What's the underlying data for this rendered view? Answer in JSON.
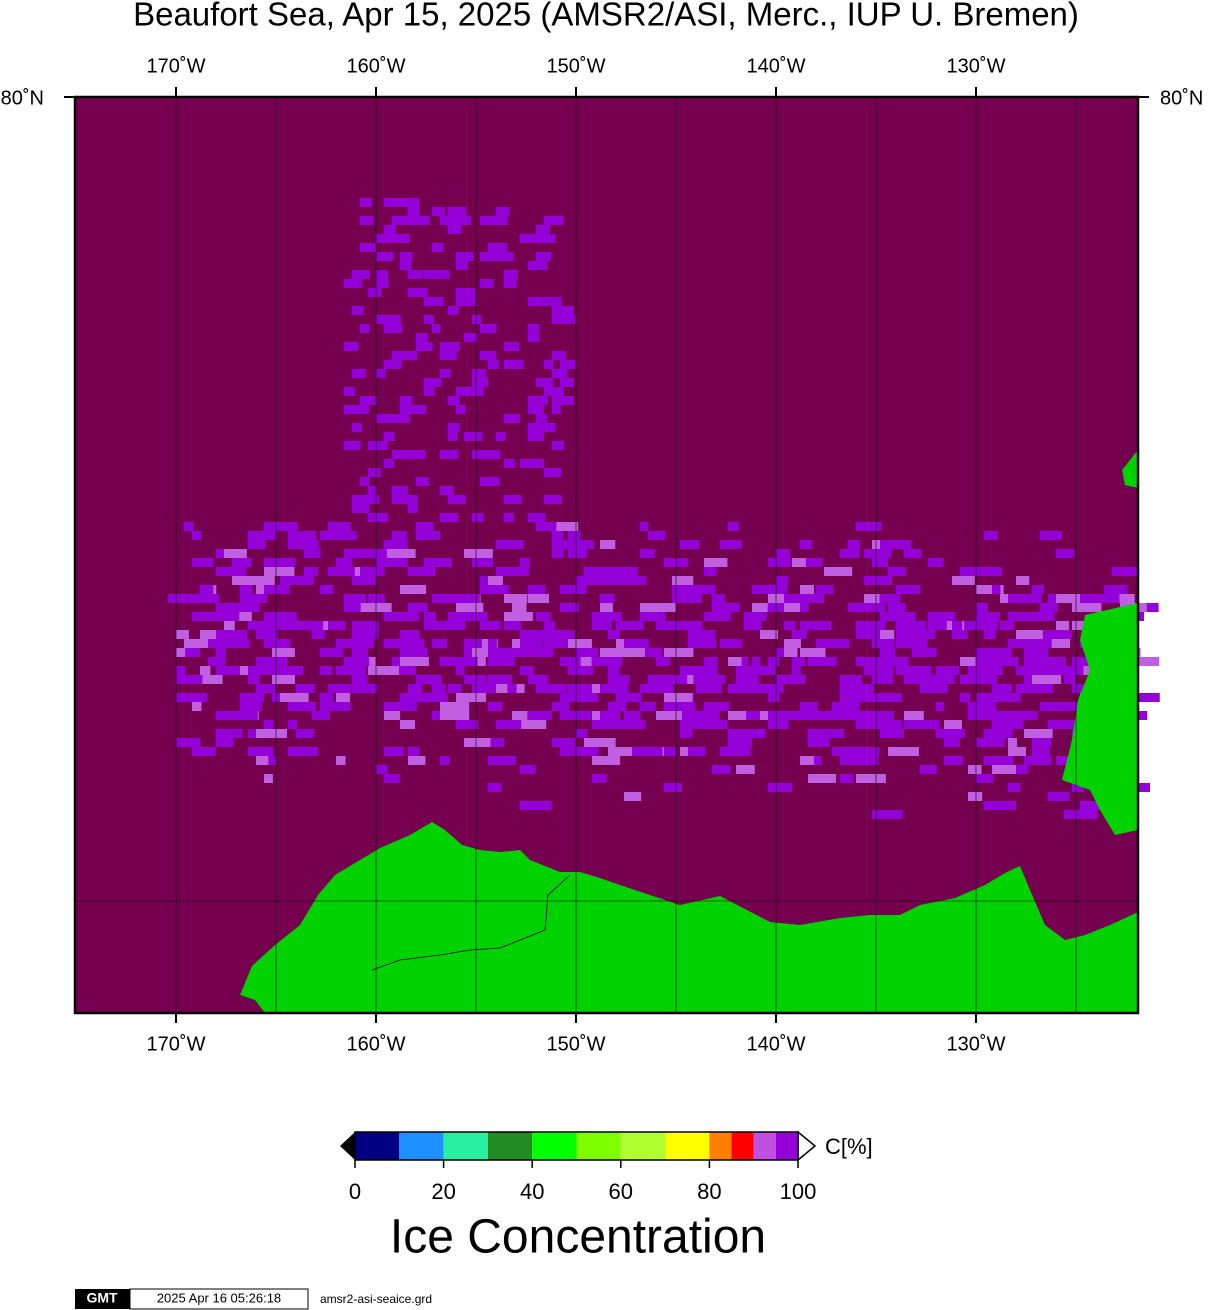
{
  "title": "Beaufort Sea, Apr 15, 2025 (AMSR2/ASI, Merc., IUP U. Bremen)",
  "map": {
    "type": "map",
    "xlim": [
      -175.05,
      -121.9
    ],
    "xticks": [
      {
        "value": -170,
        "label": "170˚W"
      },
      {
        "value": -160,
        "label": "160˚W"
      },
      {
        "value": -150,
        "label": "150˚W"
      },
      {
        "value": -140,
        "label": "140˚W"
      },
      {
        "value": -130,
        "label": "130˚W"
      }
    ],
    "grid_lons": [
      -165,
      -155,
      -145,
      -135,
      -125
    ],
    "lat_label": "80˚N",
    "ocean_color": "#760050",
    "land_color": "#00d200",
    "ice_color": "#9600d8"
  },
  "colorbar": {
    "bounds": [
      0,
      10,
      20,
      30,
      40,
      50,
      60,
      70,
      80,
      85,
      90,
      95,
      100
    ],
    "colors": [
      "#000080",
      "#1e90ff",
      "#28f0a0",
      "#228b22",
      "#00ff00",
      "#80ff00",
      "#b0ff30",
      "#ffff00",
      "#ff8000",
      "#ff0000",
      "#c050e0",
      "#9600d8"
    ],
    "xlim": [
      0,
      100
    ],
    "ticks": [
      0,
      20,
      40,
      60,
      80,
      100
    ],
    "unit": "C[%]",
    "title": "Ice Concentration"
  },
  "footer": {
    "logo": "GMT",
    "timestamp": "2025 Apr 16 05:26:18",
    "filename": "amsr2-asi-seaice.grd"
  }
}
